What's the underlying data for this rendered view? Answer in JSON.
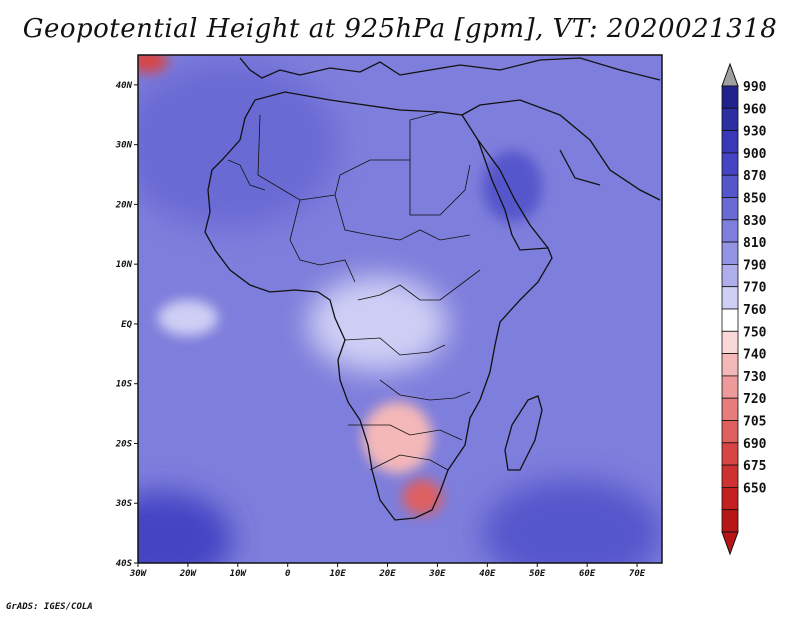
{
  "title": "Geopotential Height at 925hPa [gpm], VT: 2020021318",
  "footer": "GrADS: IGES/COLA",
  "map": {
    "lon_range": [
      -30,
      75
    ],
    "lat_range": [
      -40,
      45
    ],
    "lon_ticks": [
      {
        "v": -30,
        "label": "30W"
      },
      {
        "v": -20,
        "label": "20W"
      },
      {
        "v": -10,
        "label": "10W"
      },
      {
        "v": 0,
        "label": "0"
      },
      {
        "v": 10,
        "label": "10E"
      },
      {
        "v": 20,
        "label": "20E"
      },
      {
        "v": 30,
        "label": "30E"
      },
      {
        "v": 40,
        "label": "40E"
      },
      {
        "v": 50,
        "label": "50E"
      },
      {
        "v": 60,
        "label": "60E"
      },
      {
        "v": 70,
        "label": "70E"
      }
    ],
    "lat_ticks": [
      {
        "v": 40,
        "label": "40N"
      },
      {
        "v": 30,
        "label": "30N"
      },
      {
        "v": 20,
        "label": "20N"
      },
      {
        "v": 10,
        "label": "10N"
      },
      {
        "v": 0,
        "label": "EQ"
      },
      {
        "v": -10,
        "label": "10S"
      },
      {
        "v": -20,
        "label": "20S"
      },
      {
        "v": -30,
        "label": "30S"
      },
      {
        "v": -40,
        "label": "40S"
      }
    ],
    "field_regions": [
      {
        "name": "north-atlantic-high",
        "value": 850,
        "lon": -12,
        "lat": 30,
        "rlon": 22,
        "rlat": 14
      },
      {
        "name": "arabian-high",
        "value": 870,
        "lon": 45,
        "lat": 23,
        "rlon": 6,
        "rlat": 6
      },
      {
        "name": "southeast-atlantic-high",
        "value": 900,
        "lon": -25,
        "lat": -36,
        "rlon": 14,
        "rlat": 8
      },
      {
        "name": "southwest-indian-high",
        "value": 880,
        "lon": 57,
        "lat": -35,
        "rlon": 18,
        "rlat": 9
      },
      {
        "name": "equatorial-trough",
        "value": 770,
        "lon": 18,
        "lat": 0,
        "rlon": 14,
        "rlat": 8
      },
      {
        "name": "atlantic-eq-trough",
        "value": 780,
        "lon": -20,
        "lat": 1,
        "rlon": 6,
        "rlat": 3
      },
      {
        "name": "kalahari-low",
        "value": 740,
        "lon": 22,
        "lat": -19,
        "rlon": 7,
        "rlat": 6
      },
      {
        "name": "highveld-low",
        "value": 710,
        "lon": 27,
        "lat": -29,
        "rlon": 4,
        "rlat": 3
      },
      {
        "name": "mediterranean-low",
        "value": 690,
        "lon": -28,
        "lat": 44,
        "rlon": 4,
        "rlat": 2
      }
    ]
  },
  "colorbar": {
    "levels": [
      "990",
      "960",
      "930",
      "900",
      "870",
      "850",
      "830",
      "810",
      "790",
      "770",
      "760",
      "750",
      "740",
      "730",
      "720",
      "705",
      "690",
      "675",
      "650"
    ],
    "colors": [
      "#22228c",
      "#2d2da4",
      "#3838b8",
      "#4444c4",
      "#5656cc",
      "#6a6ad4",
      "#7e7edc",
      "#9494e4",
      "#aeaeec",
      "#cfcff5",
      "#ffffff",
      "#fbd8d8",
      "#f5b8b8",
      "#ef9a9a",
      "#e77c7c",
      "#df5e5e",
      "#d84545",
      "#cf3030",
      "#c42020",
      "#b81616"
    ],
    "top_arrow_color": "#a0a0a0"
  }
}
